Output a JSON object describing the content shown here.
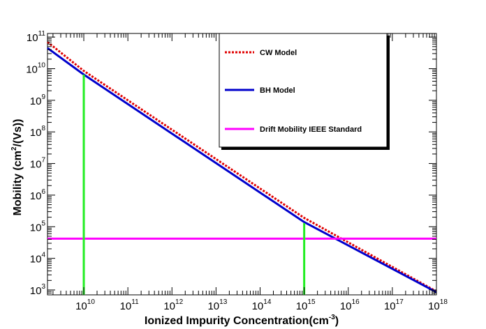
{
  "chart_data": {
    "type": "line",
    "xlabel_main": "Ionized Impurity Concentration(cm",
    "xlabel_sup": "-3",
    "xlabel_end": ")",
    "ylabel_main": "Mobility (cm",
    "ylabel_sup": "2",
    "ylabel_end": "/(Vs))",
    "x_scale": "log",
    "y_scale": "log",
    "xlim": [
      1500000000.0,
      1e+18
    ],
    "ylim": [
      700.0,
      130000000000.0
    ],
    "grid": false,
    "legend_position": "top-right",
    "x_ticks": [
      {
        "base": "10",
        "exp": "10",
        "value": 10000000000.0
      },
      {
        "base": "10",
        "exp": "11",
        "value": 100000000000.0
      },
      {
        "base": "10",
        "exp": "12",
        "value": 1000000000000.0
      },
      {
        "base": "10",
        "exp": "13",
        "value": 10000000000000.0
      },
      {
        "base": "10",
        "exp": "14",
        "value": 100000000000000.0
      },
      {
        "base": "10",
        "exp": "15",
        "value": 1000000000000000.0
      },
      {
        "base": "10",
        "exp": "16",
        "value": 1e+16
      },
      {
        "base": "10",
        "exp": "17",
        "value": 1e+17
      },
      {
        "base": "10",
        "exp": "18",
        "value": 1e+18
      }
    ],
    "y_ticks": [
      {
        "base": "10",
        "exp": "3",
        "value": 1000.0
      },
      {
        "base": "10",
        "exp": "4",
        "value": 10000.0
      },
      {
        "base": "10",
        "exp": "5",
        "value": 100000.0
      },
      {
        "base": "10",
        "exp": "6",
        "value": 1000000.0
      },
      {
        "base": "10",
        "exp": "7",
        "value": 10000000.0
      },
      {
        "base": "10",
        "exp": "8",
        "value": 100000000.0
      },
      {
        "base": "10",
        "exp": "9",
        "value": 1000000000.0
      },
      {
        "base": "10",
        "exp": "10",
        "value": 10000000000.0
      },
      {
        "base": "10",
        "exp": "11",
        "value": 100000000000.0
      }
    ],
    "series": [
      {
        "name": "CW Model",
        "color": "#e00000",
        "style": "dotted",
        "x": [
          1500000000.0,
          10000000000.0,
          1000000000000000.0,
          1e+18
        ],
        "y": [
          70000000000.0,
          8500000000.0,
          190000.0,
          900.0
        ]
      },
      {
        "name": "BH Model",
        "color": "#0000cc",
        "style": "solid",
        "x": [
          1500000000.0,
          10000000000.0,
          1000000000000000.0,
          1e+18
        ],
        "y": [
          45000000000.0,
          6500000000.0,
          140000.0,
          850.0
        ]
      },
      {
        "name": "Drift Mobility IEEE Standard",
        "color": "#ff00ff",
        "style": "solid",
        "x": [
          1500000000.0,
          1e+18
        ],
        "y": [
          42000.0,
          42000.0
        ]
      }
    ],
    "markers": [
      {
        "color": "#22ee22",
        "x": 10000000000.0,
        "y_top": 6500000000.0
      },
      {
        "color": "#22ee22",
        "x": 1000000000000000.0,
        "y_top": 130000.0
      }
    ]
  }
}
